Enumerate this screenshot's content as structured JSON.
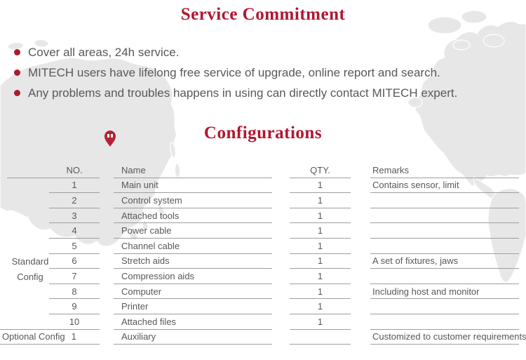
{
  "service": {
    "title": "Service Commitment",
    "bullets": [
      "Cover all areas, 24h service.",
      "MITECH users have lifelong free service of upgrade, online report and search.",
      "Any problems and troubles happens in using can directly contact MITECH expert."
    ]
  },
  "config": {
    "title": "Configurations"
  },
  "table": {
    "headers": {
      "no": "NO.",
      "name": "Name",
      "qty": "QTY.",
      "remarks": "Remarks"
    },
    "group": {
      "line1": "Standard",
      "line2": "Config"
    },
    "rows": [
      {
        "no": "1",
        "name": "Main unit",
        "qty": "1",
        "remarks": "Contains sensor, limit"
      },
      {
        "no": "2",
        "name": "Control system",
        "qty": "1",
        "remarks": ""
      },
      {
        "no": "3",
        "name": "Attached tools",
        "qty": "1",
        "remarks": ""
      },
      {
        "no": "4",
        "name": "Power cable",
        "qty": "1",
        "remarks": ""
      },
      {
        "no": "5",
        "name": "Channel cable",
        "qty": "1",
        "remarks": ""
      },
      {
        "no": "6",
        "name": "Stretch aids",
        "qty": "1",
        "remarks": "A set of fixtures, jaws"
      },
      {
        "no": "7",
        "name": "Compression aids",
        "qty": "1",
        "remarks": ""
      },
      {
        "no": "8",
        "name": "Computer",
        "qty": "1",
        "remarks": "Including host and monitor"
      },
      {
        "no": "9",
        "name": "Printer",
        "qty": "1",
        "remarks": ""
      },
      {
        "no": "10",
        "name": "Attached files",
        "qty": "1",
        "remarks": ""
      }
    ],
    "optional": {
      "label": "Optional Config",
      "no": "1",
      "name": "Auxiliary",
      "qty": "",
      "remarks": "Customized to customer requirements"
    }
  },
  "icons": {
    "bullet": "red-dot-icon",
    "map_pin": "location-pin-icon"
  },
  "colors": {
    "title_red": "#b01730",
    "bullet_red": "#a81d2c",
    "pin_red": "#b22335",
    "body_gray": "#57585a",
    "line_gray": "#9e9e9e",
    "map_land": "#e7e7e7"
  }
}
